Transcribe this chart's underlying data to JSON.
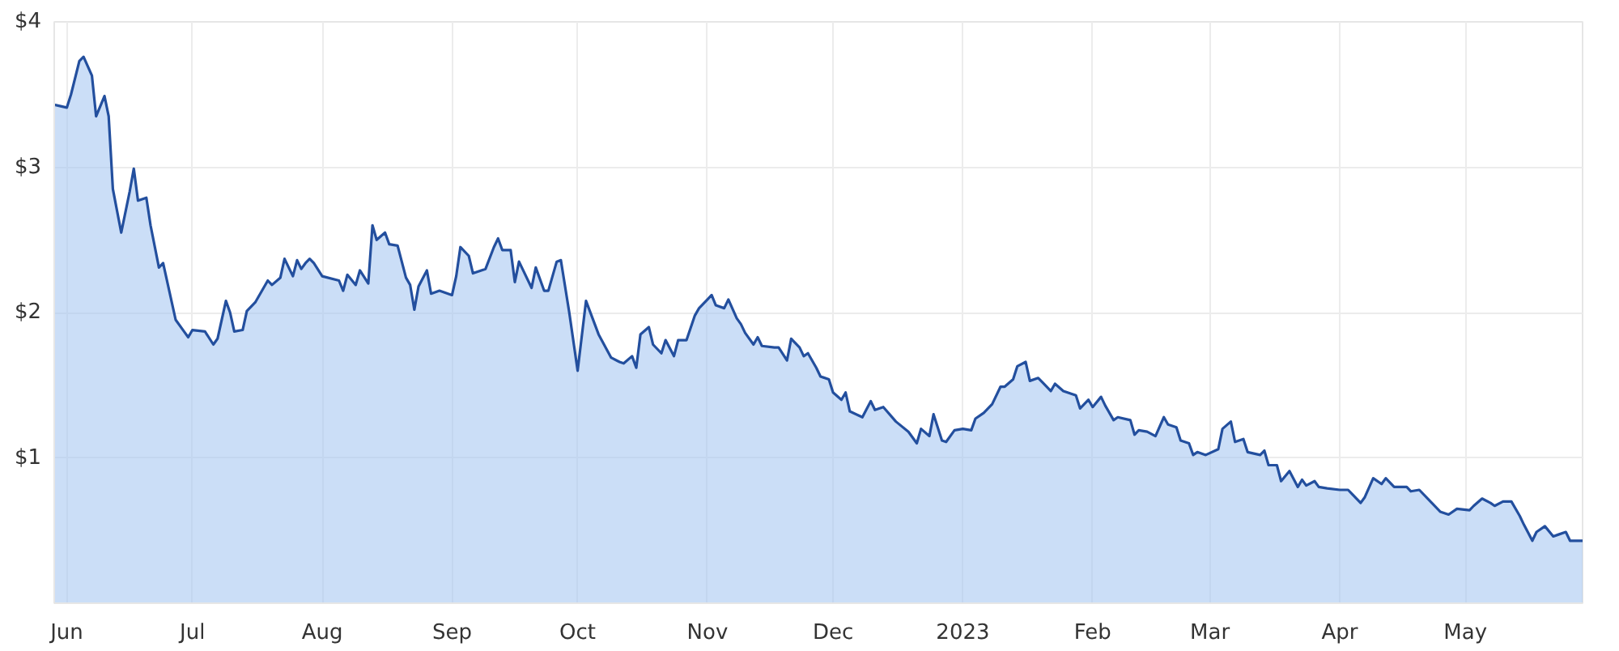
{
  "chart_data": {
    "type": "area",
    "x": [
      "2022-05-29",
      "2022-06-01",
      "2022-06-02",
      "2022-06-04",
      "2022-06-05",
      "2022-06-07",
      "2022-06-08",
      "2022-06-10",
      "2022-06-11",
      "2022-06-12",
      "2022-06-14",
      "2022-06-16",
      "2022-06-17",
      "2022-06-18",
      "2022-06-20",
      "2022-06-21",
      "2022-06-23",
      "2022-06-24",
      "2022-06-27",
      "2022-06-29",
      "2022-06-30",
      "2022-07-01",
      "2022-07-04",
      "2022-07-06",
      "2022-07-07",
      "2022-07-09",
      "2022-07-10",
      "2022-07-11",
      "2022-07-13",
      "2022-07-14",
      "2022-07-16",
      "2022-07-18",
      "2022-07-19",
      "2022-07-20",
      "2022-07-22",
      "2022-07-23",
      "2022-07-25",
      "2022-07-26",
      "2022-07-27",
      "2022-07-28",
      "2022-07-29",
      "2022-07-30",
      "2022-08-01",
      "2022-08-05",
      "2022-08-06",
      "2022-08-07",
      "2022-08-09",
      "2022-08-10",
      "2022-08-12",
      "2022-08-13",
      "2022-08-14",
      "2022-08-16",
      "2022-08-17",
      "2022-08-19",
      "2022-08-21",
      "2022-08-22",
      "2022-08-23",
      "2022-08-24",
      "2022-08-26",
      "2022-08-27",
      "2022-08-29",
      "2022-09-01",
      "2022-09-02",
      "2022-09-03",
      "2022-09-05",
      "2022-09-06",
      "2022-09-09",
      "2022-09-11",
      "2022-09-12",
      "2022-09-13",
      "2022-09-15",
      "2022-09-16",
      "2022-09-17",
      "2022-09-20",
      "2022-09-21",
      "2022-09-23",
      "2022-09-24",
      "2022-09-26",
      "2022-09-27",
      "2022-09-29",
      "2022-10-01",
      "2022-10-03",
      "2022-10-06",
      "2022-10-09",
      "2022-10-11",
      "2022-10-12",
      "2022-10-14",
      "2022-10-15",
      "2022-10-16",
      "2022-10-18",
      "2022-10-19",
      "2022-10-21",
      "2022-10-22",
      "2022-10-24",
      "2022-10-25",
      "2022-10-27",
      "2022-10-29",
      "2022-10-30",
      "2022-11-01",
      "2022-11-02",
      "2022-11-03",
      "2022-11-05",
      "2022-11-06",
      "2022-11-08",
      "2022-11-09",
      "2022-11-10",
      "2022-11-12",
      "2022-11-13",
      "2022-11-14",
      "2022-11-17",
      "2022-11-18",
      "2022-11-20",
      "2022-11-21",
      "2022-11-23",
      "2022-11-24",
      "2022-11-25",
      "2022-11-27",
      "2022-11-28",
      "2022-11-30",
      "2022-12-01",
      "2022-12-03",
      "2022-12-04",
      "2022-12-05",
      "2022-12-08",
      "2022-12-10",
      "2022-12-11",
      "2022-12-13",
      "2022-12-16",
      "2022-12-19",
      "2022-12-21",
      "2022-12-22",
      "2022-12-24",
      "2022-12-25",
      "2022-12-27",
      "2022-12-28",
      "2022-12-30",
      "2023-01-01",
      "2023-01-03",
      "2023-01-04",
      "2023-01-06",
      "2023-01-08",
      "2023-01-10",
      "2023-01-11",
      "2023-01-13",
      "2023-01-14",
      "2023-01-16",
      "2023-01-17",
      "2023-01-19",
      "2023-01-20",
      "2023-01-22",
      "2023-01-23",
      "2023-01-25",
      "2023-01-28",
      "2023-01-29",
      "2023-01-31",
      "2023-02-01",
      "2023-02-03",
      "2023-02-04",
      "2023-02-06",
      "2023-02-07",
      "2023-02-10",
      "2023-02-11",
      "2023-02-12",
      "2023-02-14",
      "2023-02-16",
      "2023-02-18",
      "2023-02-19",
      "2023-02-21",
      "2023-02-22",
      "2023-02-24",
      "2023-02-25",
      "2023-02-26",
      "2023-02-28",
      "2023-03-03",
      "2023-03-04",
      "2023-03-06",
      "2023-03-07",
      "2023-03-09",
      "2023-03-10",
      "2023-03-13",
      "2023-03-14",
      "2023-03-15",
      "2023-03-17",
      "2023-03-18",
      "2023-03-20",
      "2023-03-22",
      "2023-03-23",
      "2023-03-24",
      "2023-03-26",
      "2023-03-27",
      "2023-03-29",
      "2023-04-01",
      "2023-04-03",
      "2023-04-04",
      "2023-04-06",
      "2023-04-07",
      "2023-04-09",
      "2023-04-11",
      "2023-04-12",
      "2023-04-14",
      "2023-04-17",
      "2023-04-18",
      "2023-04-20",
      "2023-04-23",
      "2023-04-25",
      "2023-04-27",
      "2023-04-29",
      "2023-05-02",
      "2023-05-03",
      "2023-05-05",
      "2023-05-07",
      "2023-05-08",
      "2023-05-10",
      "2023-05-12",
      "2023-05-14",
      "2023-05-15",
      "2023-05-17",
      "2023-05-18",
      "2023-05-20",
      "2023-05-22",
      "2023-05-23",
      "2023-05-25",
      "2023-05-26",
      "2023-05-29"
    ],
    "series": [
      {
        "color": "#234f9e",
        "values": [
          3.43,
          3.41,
          3.5,
          3.73,
          3.76,
          3.63,
          3.35,
          3.49,
          3.35,
          2.85,
          2.55,
          2.83,
          2.99,
          2.77,
          2.79,
          2.6,
          2.31,
          2.34,
          1.95,
          1.87,
          1.83,
          1.88,
          1.87,
          1.78,
          1.82,
          2.08,
          2.0,
          1.87,
          1.88,
          2.01,
          2.07,
          2.17,
          2.22,
          2.19,
          2.24,
          2.37,
          2.25,
          2.36,
          2.3,
          2.34,
          2.37,
          2.34,
          2.25,
          2.22,
          2.15,
          2.26,
          2.19,
          2.29,
          2.2,
          2.6,
          2.5,
          2.55,
          2.47,
          2.46,
          2.24,
          2.19,
          2.02,
          2.18,
          2.29,
          2.13,
          2.15,
          2.12,
          2.25,
          2.45,
          2.39,
          2.27,
          2.3,
          2.45,
          2.51,
          2.43,
          2.43,
          2.21,
          2.35,
          2.17,
          2.31,
          2.15,
          2.15,
          2.35,
          2.36,
          2.0,
          1.6,
          2.08,
          1.85,
          1.69,
          1.66,
          1.65,
          1.7,
          1.62,
          1.85,
          1.9,
          1.78,
          1.72,
          1.81,
          1.7,
          1.81,
          1.81,
          1.98,
          2.03,
          2.09,
          2.12,
          2.05,
          2.03,
          2.09,
          1.96,
          1.92,
          1.86,
          1.78,
          1.83,
          1.77,
          1.76,
          1.76,
          1.67,
          1.82,
          1.76,
          1.7,
          1.72,
          1.62,
          1.56,
          1.54,
          1.45,
          1.4,
          1.45,
          1.32,
          1.28,
          1.39,
          1.33,
          1.35,
          1.25,
          1.18,
          1.1,
          1.2,
          1.15,
          1.3,
          1.12,
          1.11,
          1.19,
          1.2,
          1.19,
          1.27,
          1.31,
          1.37,
          1.49,
          1.49,
          1.54,
          1.63,
          1.66,
          1.53,
          1.55,
          1.52,
          1.46,
          1.51,
          1.46,
          1.43,
          1.34,
          1.4,
          1.35,
          1.42,
          1.36,
          1.26,
          1.28,
          1.26,
          1.16,
          1.19,
          1.18,
          1.15,
          1.28,
          1.23,
          1.21,
          1.12,
          1.1,
          1.02,
          1.04,
          1.02,
          1.06,
          1.2,
          1.25,
          1.11,
          1.13,
          1.04,
          1.02,
          1.05,
          0.95,
          0.95,
          0.84,
          0.91,
          0.8,
          0.85,
          0.81,
          0.84,
          0.8,
          0.79,
          0.78,
          0.78,
          0.75,
          0.69,
          0.73,
          0.86,
          0.82,
          0.86,
          0.8,
          0.8,
          0.77,
          0.78,
          0.69,
          0.63,
          0.61,
          0.65,
          0.64,
          0.67,
          0.72,
          0.69,
          0.67,
          0.7,
          0.7,
          0.6,
          0.54,
          0.43,
          0.49,
          0.53,
          0.46,
          0.47,
          0.49,
          0.43,
          0.43
        ]
      }
    ],
    "xlim": [
      "2022-05-29",
      "2023-05-29"
    ],
    "xticks": [
      {
        "value": "2022-06-01",
        "label": "Jun"
      },
      {
        "value": "2022-07-01",
        "label": "Jul"
      },
      {
        "value": "2022-08-01",
        "label": "Aug"
      },
      {
        "value": "2022-09-01",
        "label": "Sep"
      },
      {
        "value": "2022-10-01",
        "label": "Oct"
      },
      {
        "value": "2022-11-01",
        "label": "Nov"
      },
      {
        "value": "2022-12-01",
        "label": "Dec"
      },
      {
        "value": "2023-01-01",
        "label": "2023"
      },
      {
        "value": "2023-02-01",
        "label": "Feb"
      },
      {
        "value": "2023-03-01",
        "label": "Mar"
      },
      {
        "value": "2023-04-01",
        "label": "Apr"
      },
      {
        "value": "2023-05-01",
        "label": "May"
      }
    ],
    "ylim": [
      0,
      4
    ],
    "yticks": [
      {
        "value": 1,
        "label": "$1"
      },
      {
        "value": 2,
        "label": "$2"
      },
      {
        "value": 3,
        "label": "$3"
      },
      {
        "value": 4,
        "label": "$4"
      }
    ],
    "grid": true
  }
}
